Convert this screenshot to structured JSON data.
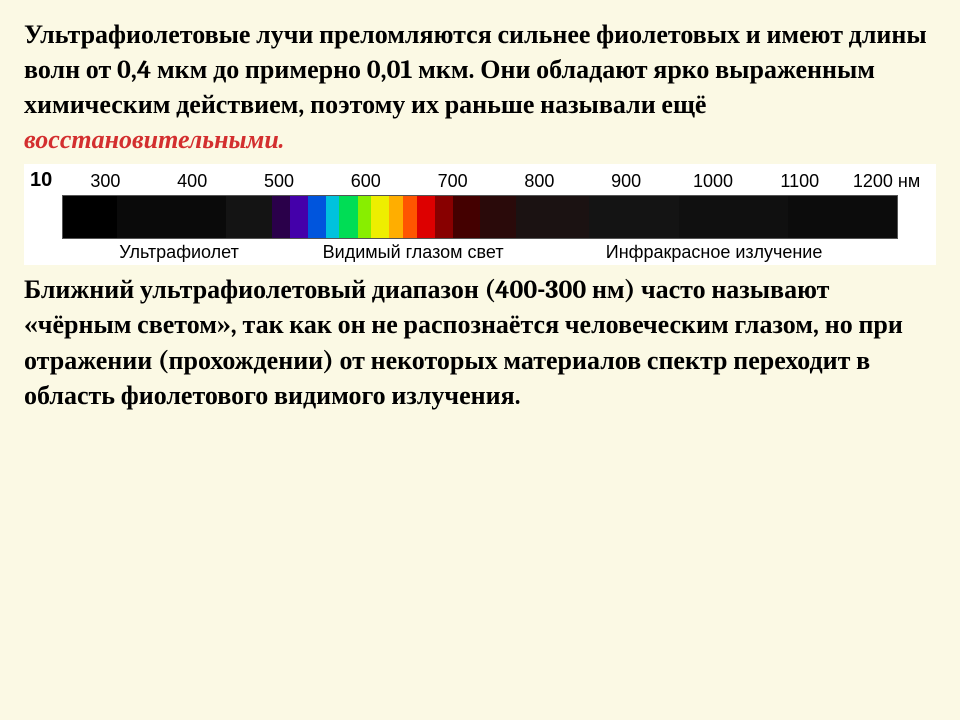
{
  "para1": {
    "t1": "Ультрафиолетовые  лучи преломляются сильнее фиолетовых и имеют длины волн от 0,4 мкм до примерно 0,01 мкм. Они обладают ярко выраженным химическим  действием, поэтому их раньше  называли ещё ",
    "hl": "восстановительными.",
    "t2": ""
  },
  "spectrum": {
    "ticks_first": "10",
    "ticks": [
      "300",
      "400",
      "500",
      "600",
      "700",
      "800",
      "900",
      "1000",
      "1100",
      "1200 нм"
    ],
    "segments": [
      {
        "color": "#000000",
        "flex": 6
      },
      {
        "color": "#0a0a0a",
        "flex": 12
      },
      {
        "color": "#141414",
        "flex": 5
      },
      {
        "color": "#2a004a",
        "flex": 2
      },
      {
        "color": "#4400aa",
        "flex": 2
      },
      {
        "color": "#0055dd",
        "flex": 2
      },
      {
        "color": "#00c2dd",
        "flex": 1.5
      },
      {
        "color": "#00dd55",
        "flex": 2
      },
      {
        "color": "#88ee00",
        "flex": 1.5
      },
      {
        "color": "#eeee00",
        "flex": 2
      },
      {
        "color": "#ffae00",
        "flex": 1.5
      },
      {
        "color": "#ff5500",
        "flex": 1.5
      },
      {
        "color": "#dd0000",
        "flex": 2
      },
      {
        "color": "#880000",
        "flex": 2
      },
      {
        "color": "#440000",
        "flex": 3
      },
      {
        "color": "#2a0a0a",
        "flex": 4
      },
      {
        "color": "#1b1212",
        "flex": 8
      },
      {
        "color": "#141414",
        "flex": 10
      },
      {
        "color": "#101010",
        "flex": 12
      },
      {
        "color": "#0c0c0c",
        "flex": 12
      }
    ],
    "regions": {
      "r1": "Ультрафиолет",
      "r2": "Видимый глазом свет",
      "r3": "Инфракрасное излучение"
    }
  },
  "para2": "Ближний ультрафиолетовый диапазон (400-300 нм) часто называют «чёрным светом», так как он не распознаётся человеческим глазом, но при отражении (прохождении) от некоторых материалов спектр переходит в область фиолетового видимого излучения."
}
